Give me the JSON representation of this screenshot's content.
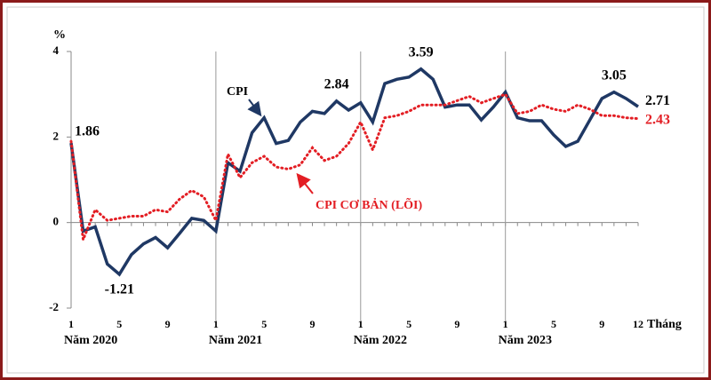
{
  "chart_data": {
    "type": "line",
    "y_label": "%",
    "x_label": "Tháng",
    "categories": [
      "1",
      null,
      null,
      null,
      "5",
      null,
      null,
      null,
      "9",
      null,
      null,
      null,
      "1",
      null,
      null,
      null,
      "5",
      null,
      null,
      null,
      "9",
      null,
      null,
      null,
      "1",
      null,
      null,
      null,
      "5",
      null,
      null,
      null,
      "9",
      null,
      null,
      null,
      "1",
      null,
      null,
      null,
      "5",
      null,
      null,
      null,
      "9",
      null,
      null,
      "12"
    ],
    "year_labels": [
      "Năm 2020",
      "Năm 2021",
      "Năm 2022",
      "Năm 2023"
    ],
    "ylim": [
      -2,
      4
    ],
    "yticks": [
      -2,
      0,
      2,
      4
    ],
    "series": [
      {
        "name": "CPI",
        "color": "#1f3864",
        "dash": false,
        "values": [
          1.86,
          -0.2,
          -0.1,
          -0.97,
          -1.21,
          -0.75,
          -0.5,
          -0.35,
          -0.59,
          -0.25,
          0.1,
          0.05,
          -0.2,
          1.4,
          1.2,
          2.1,
          2.45,
          1.85,
          1.92,
          2.35,
          2.6,
          2.55,
          2.84,
          2.63,
          2.8,
          2.35,
          3.25,
          3.35,
          3.4,
          3.59,
          3.35,
          2.7,
          2.75,
          2.75,
          2.4,
          2.7,
          3.05,
          2.45,
          2.38,
          2.38,
          2.05,
          1.78,
          1.9,
          2.4,
          2.9,
          3.05,
          2.9,
          2.71
        ],
        "value_labels": [
          "1.86",
          null,
          null,
          null,
          "-1.21",
          null,
          null,
          null,
          null,
          null,
          null,
          null,
          null,
          null,
          null,
          null,
          null,
          null,
          null,
          null,
          null,
          null,
          "2.84",
          null,
          null,
          null,
          null,
          null,
          null,
          "3.59",
          null,
          null,
          null,
          null,
          null,
          null,
          null,
          null,
          null,
          null,
          null,
          null,
          null,
          null,
          null,
          "3.05",
          null,
          "2.71"
        ]
      },
      {
        "name": "CPI CƠ BẢN (LÕI)",
        "color": "#e31e24",
        "dash": true,
        "values": [
          1.9,
          -0.4,
          0.3,
          0.05,
          0.1,
          0.15,
          0.15,
          0.3,
          0.25,
          0.55,
          0.75,
          0.6,
          0.05,
          1.6,
          1.05,
          1.4,
          1.55,
          1.3,
          1.25,
          1.35,
          1.75,
          1.45,
          1.55,
          1.85,
          2.35,
          1.7,
          2.45,
          2.5,
          2.6,
          2.75,
          2.75,
          2.75,
          2.85,
          2.95,
          2.8,
          2.9,
          3.0,
          2.55,
          2.6,
          2.75,
          2.65,
          2.6,
          2.75,
          2.65,
          2.5,
          2.5,
          2.45,
          2.43
        ],
        "value_labels": [
          null,
          null,
          null,
          null,
          null,
          null,
          null,
          null,
          null,
          null,
          null,
          null,
          null,
          null,
          null,
          null,
          null,
          null,
          null,
          null,
          null,
          null,
          null,
          null,
          null,
          null,
          null,
          null,
          null,
          null,
          null,
          null,
          null,
          null,
          null,
          null,
          null,
          null,
          null,
          null,
          null,
          null,
          null,
          null,
          null,
          null,
          null,
          "2.43"
        ]
      }
    ]
  }
}
